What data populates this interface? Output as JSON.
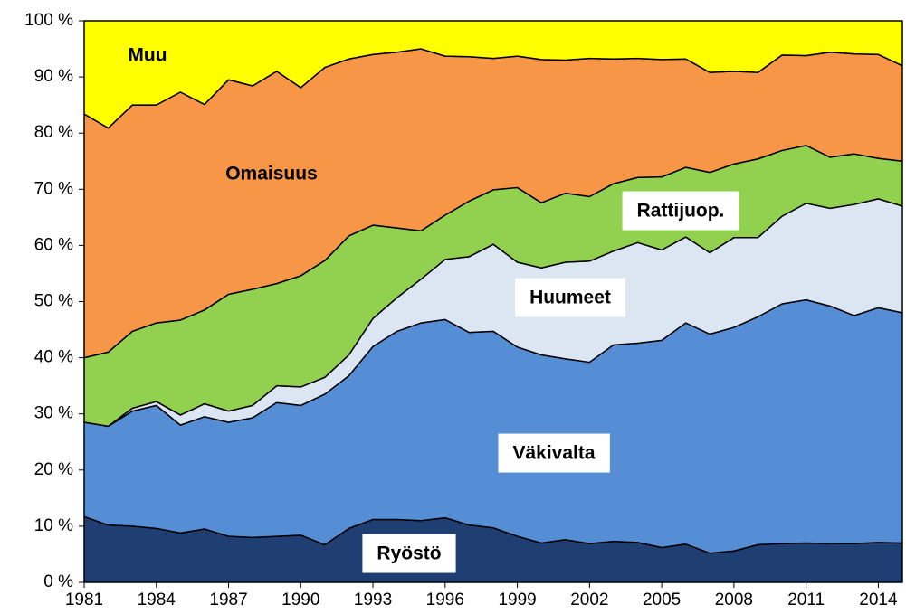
{
  "chart_data": {
    "type": "stacked-area",
    "x": [
      1981,
      1982,
      1983,
      1984,
      1985,
      1986,
      1987,
      1988,
      1989,
      1990,
      1991,
      1992,
      1993,
      1994,
      1995,
      1996,
      1997,
      1998,
      1999,
      2000,
      2001,
      2002,
      2003,
      2004,
      2005,
      2006,
      2007,
      2008,
      2009,
      2010,
      2011,
      2012,
      2013,
      2014,
      2015
    ],
    "xlim": [
      1981,
      2015
    ],
    "xticks": [
      1981,
      1984,
      1987,
      1990,
      1993,
      1996,
      1999,
      2002,
      2005,
      2008,
      2011,
      2014
    ],
    "ylim": [
      0,
      100
    ],
    "yticks": [
      {
        "value": 0,
        "label": "0 %"
      },
      {
        "value": 10,
        "label": "10 %"
      },
      {
        "value": 20,
        "label": "20 %"
      },
      {
        "value": 30,
        "label": "30 %"
      },
      {
        "value": 40,
        "label": "40 %"
      },
      {
        "value": 50,
        "label": "50 %"
      },
      {
        "value": 60,
        "label": "60 %"
      },
      {
        "value": 70,
        "label": "70 %"
      },
      {
        "value": 80,
        "label": "80 %"
      },
      {
        "value": 90,
        "label": "90 %"
      },
      {
        "value": 100,
        "label": "100 %"
      }
    ],
    "series": [
      {
        "name": "Ryöstö",
        "color": "#1f3f72",
        "values": [
          11.7,
          10.2,
          10.0,
          9.6,
          8.8,
          9.5,
          8.2,
          8.0,
          8.2,
          8.4,
          6.7,
          9.6,
          11.2,
          11.2,
          11.0,
          11.5,
          10.2,
          9.7,
          8.2,
          7.0,
          7.6,
          6.9,
          7.3,
          7.1,
          6.2,
          6.8,
          5.2,
          5.6,
          6.7,
          6.9,
          7.0,
          6.9,
          6.9,
          7.1,
          7.0
        ]
      },
      {
        "name": "Väkivalta",
        "color": "#558ed5",
        "values": [
          16.8,
          17.6,
          20.5,
          21.9,
          19.2,
          20.0,
          20.3,
          21.3,
          23.8,
          23.1,
          26.8,
          27.2,
          30.8,
          33.5,
          35.2,
          35.3,
          34.3,
          35.0,
          33.7,
          33.5,
          32.2,
          32.3,
          35.0,
          35.5,
          36.9,
          39.4,
          39.0,
          39.8,
          40.6,
          42.7,
          43.3,
          42.3,
          40.6,
          41.8,
          41.0
        ]
      },
      {
        "name": "Huumeet",
        "color": "#dce6f2",
        "values": [
          0,
          0,
          0.5,
          0.7,
          1.8,
          2.3,
          2.0,
          2.2,
          3.0,
          3.3,
          3.0,
          3.7,
          5.0,
          6.0,
          7.8,
          10.7,
          13.5,
          15.5,
          15.1,
          15.5,
          17.2,
          18.0,
          16.7,
          17.9,
          16.1,
          15.3,
          14.5,
          16.0,
          14.1,
          15.6,
          17.2,
          17.4,
          19.8,
          19.4,
          19.0
        ]
      },
      {
        "name": "Rattijuop.",
        "color": "#92d050",
        "values": [
          11.5,
          13.2,
          13.7,
          14.0,
          16.9,
          16.7,
          20.8,
          20.7,
          18.2,
          19.8,
          20.8,
          21.2,
          16.6,
          12.4,
          8.6,
          7.9,
          9.9,
          9.7,
          13.3,
          11.6,
          12.3,
          11.5,
          12.0,
          11.6,
          13.0,
          12.4,
          14.3,
          13.1,
          14.0,
          11.7,
          10.3,
          9.1,
          9.0,
          7.2,
          8.0
        ]
      },
      {
        "name": "Omaisuus",
        "color": "#f79646",
        "values": [
          43.4,
          39.9,
          40.3,
          38.8,
          40.6,
          36.6,
          38.2,
          36.2,
          37.8,
          33.5,
          34.4,
          31.5,
          30.4,
          31.3,
          32.4,
          28.3,
          25.7,
          23.4,
          23.4,
          25.5,
          23.7,
          24.6,
          22.2,
          21.2,
          20.9,
          19.3,
          17.8,
          16.5,
          15.4,
          17.0,
          16.0,
          18.7,
          17.8,
          18.5,
          17.0
        ]
      },
      {
        "name": "Muu",
        "color": "#ffff00",
        "values": [
          16.6,
          19.1,
          15.0,
          15.0,
          12.7,
          14.9,
          10.5,
          11.6,
          9.0,
          11.9,
          8.3,
          6.8,
          6.0,
          5.6,
          5.0,
          6.3,
          6.4,
          6.7,
          6.3,
          6.9,
          7.0,
          6.7,
          6.8,
          6.7,
          6.9,
          6.8,
          9.2,
          9.0,
          9.2,
          6.1,
          6.2,
          5.6,
          5.9,
          6.0,
          8.0
        ]
      }
    ]
  }
}
